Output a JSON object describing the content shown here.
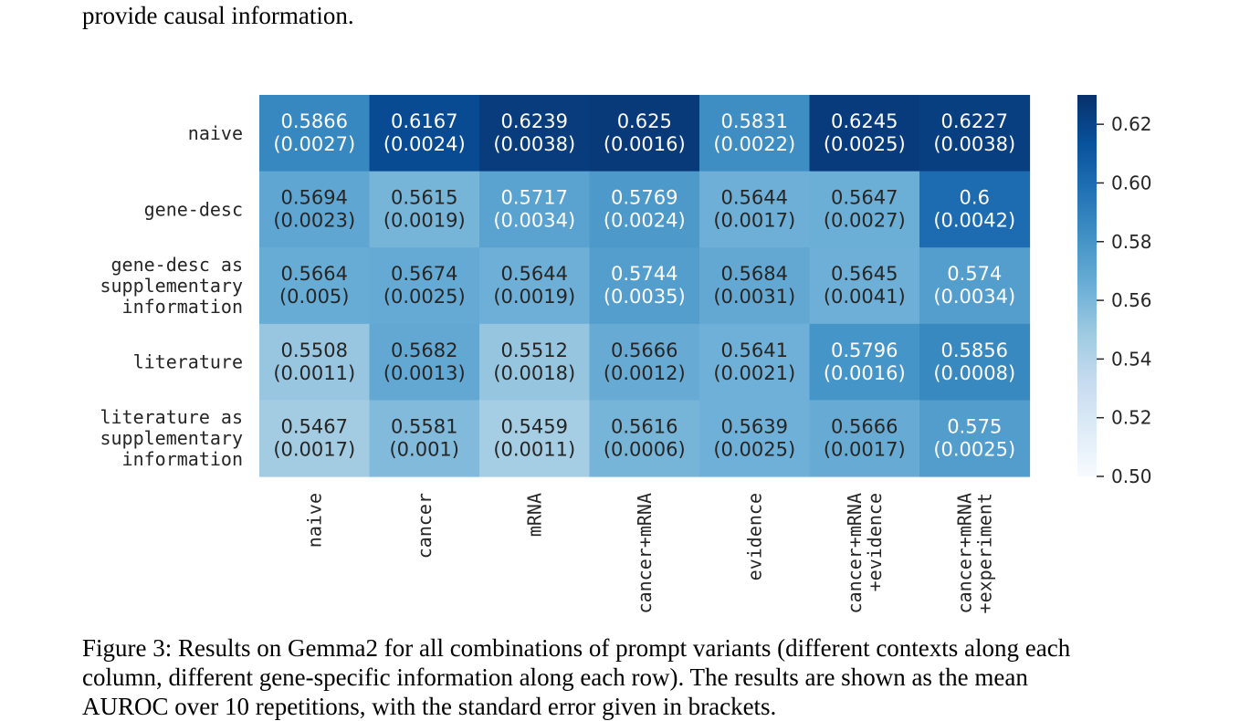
{
  "page": {
    "top_text": "provide causal information.",
    "caption_lines": [
      "Figure 3: Results on Gemma2 for all combinations of prompt variants (different contexts along each",
      "column, different gene-specific information along each row).  The results are shown as the mean",
      "AUROC over 10 repetitions, with the standard error given in brackets."
    ]
  },
  "chart_data": {
    "type": "heatmap",
    "title": "",
    "xlabel": "",
    "ylabel": "",
    "columns": [
      [
        "naive"
      ],
      [
        "cancer"
      ],
      [
        "mRNA"
      ],
      [
        "cancer+mRNA"
      ],
      [
        "evidence"
      ],
      [
        "cancer+mRNA",
        "+evidence"
      ],
      [
        "cancer+mRNA",
        "+experiment"
      ]
    ],
    "rows": [
      [
        "naive"
      ],
      [
        "gene-desc"
      ],
      [
        "gene-desc as",
        "supplementary",
        "information"
      ],
      [
        "literature"
      ],
      [
        "literature as",
        "supplementary",
        "information"
      ]
    ],
    "values": [
      [
        0.5866,
        0.6167,
        0.6239,
        0.625,
        0.5831,
        0.6245,
        0.6227
      ],
      [
        0.5694,
        0.5615,
        0.5717,
        0.5769,
        0.5644,
        0.5647,
        0.6
      ],
      [
        0.5664,
        0.5674,
        0.5644,
        0.5744,
        0.5684,
        0.5645,
        0.574
      ],
      [
        0.5508,
        0.5682,
        0.5512,
        0.5666,
        0.5641,
        0.5796,
        0.5856
      ],
      [
        0.5467,
        0.5581,
        0.5459,
        0.5616,
        0.5639,
        0.5666,
        0.575
      ]
    ],
    "value_labels": [
      [
        "0.5866",
        "0.6167",
        "0.6239",
        "0.625",
        "0.5831",
        "0.6245",
        "0.6227"
      ],
      [
        "0.5694",
        "0.5615",
        "0.5717",
        "0.5769",
        "0.5644",
        "0.5647",
        "0.6"
      ],
      [
        "0.5664",
        "0.5674",
        "0.5644",
        "0.5744",
        "0.5684",
        "0.5645",
        "0.574"
      ],
      [
        "0.5508",
        "0.5682",
        "0.5512",
        "0.5666",
        "0.5641",
        "0.5796",
        "0.5856"
      ],
      [
        "0.5467",
        "0.5581",
        "0.5459",
        "0.5616",
        "0.5639",
        "0.5666",
        "0.575"
      ]
    ],
    "errors": [
      [
        "(0.0027)",
        "(0.0024)",
        "(0.0038)",
        "(0.0016)",
        "(0.0022)",
        "(0.0025)",
        "(0.0038)"
      ],
      [
        "(0.0023)",
        "(0.0019)",
        "(0.0034)",
        "(0.0024)",
        "(0.0017)",
        "(0.0027)",
        "(0.0042)"
      ],
      [
        "(0.005)",
        "(0.0025)",
        "(0.0019)",
        "(0.0035)",
        "(0.0031)",
        "(0.0041)",
        "(0.0034)"
      ],
      [
        "(0.0011)",
        "(0.0013)",
        "(0.0018)",
        "(0.0012)",
        "(0.0021)",
        "(0.0016)",
        "(0.0008)"
      ],
      [
        "(0.0017)",
        "(0.001)",
        "(0.0011)",
        "(0.0006)",
        "(0.0025)",
        "(0.0017)",
        "(0.0025)"
      ]
    ],
    "colorbar": {
      "range": [
        0.5,
        0.63
      ],
      "ticks": [
        0.5,
        0.52,
        0.54,
        0.56,
        0.58,
        0.6,
        0.62
      ],
      "tick_labels": [
        "0.50",
        "0.52",
        "0.54",
        "0.56",
        "0.58",
        "0.60",
        "0.62"
      ],
      "colormap": "Blues",
      "placement": "right"
    },
    "grid": false,
    "legend": "none"
  }
}
